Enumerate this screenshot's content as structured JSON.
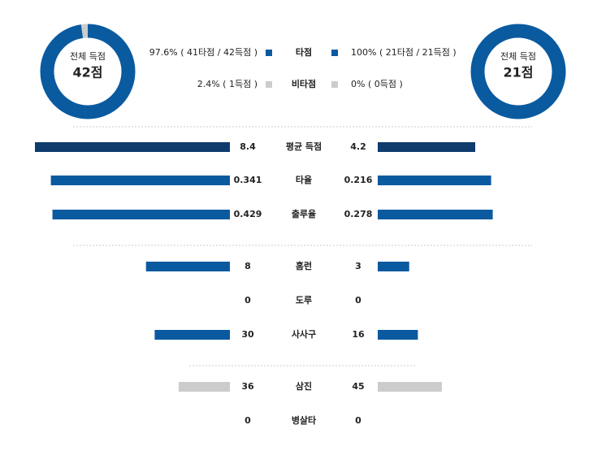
{
  "donuts": [
    {
      "title": "전체 득점",
      "total": "42점",
      "shares": [
        97.6,
        2.4
      ]
    },
    {
      "title": "전체 득점",
      "total": "21점",
      "shares": [
        100,
        0
      ]
    }
  ],
  "legend": [
    {
      "name": "타점",
      "left": "97.6% ( 41타점 / 42득점 )",
      "right": "100% ( 21타점 / 21득점 )",
      "color": "#0a5aa0"
    },
    {
      "name": "비타점",
      "left": "2.4% ( 1득점 )",
      "right": "0% ( 0득점 )",
      "color": "#cccccc"
    }
  ],
  "groups": [
    {
      "rows": [
        {
          "label": "평균 득점",
          "left": 8.4,
          "right": 4.2,
          "color": "#0f3b6d"
        },
        {
          "label": "타율",
          "left": 0.341,
          "right": 0.216,
          "color": "#0a5aa0"
        },
        {
          "label": "출루율",
          "left": 0.429,
          "right": 0.278,
          "color": "#0a5aa0"
        }
      ]
    },
    {
      "rows": [
        {
          "label": "홈런",
          "left": 8,
          "right": 3,
          "color": "#0a5aa0"
        },
        {
          "label": "도루",
          "left": 0,
          "right": 0,
          "color": "#0a5aa0"
        },
        {
          "label": "사사구",
          "left": 30,
          "right": 16,
          "color": "#0a5aa0"
        }
      ]
    },
    {
      "rows": [
        {
          "label": "삼진",
          "left": 36,
          "right": 45,
          "color": "#cccccc"
        },
        {
          "label": "병살타",
          "left": 0,
          "right": 0,
          "color": "#cccccc"
        }
      ]
    }
  ]
}
